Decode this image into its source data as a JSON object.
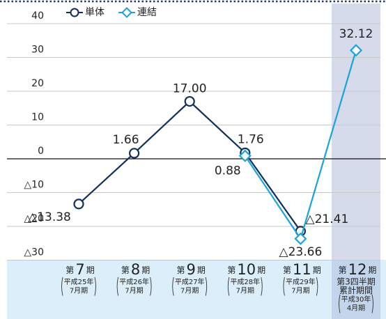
{
  "chart_data": {
    "type": "line",
    "categories": [
      "第7期",
      "第8期",
      "第9期",
      "第10期",
      "第11期",
      "第12期"
    ],
    "category_notes": [
      [
        "平成25年",
        "7月期"
      ],
      [
        "平成26年",
        "7月期"
      ],
      [
        "平成27年",
        "7月期"
      ],
      [
        "平成28年",
        "7月期"
      ],
      [
        "平成29年",
        "7月期"
      ],
      [
        "第3四半期",
        "累計期間",
        "平成30年",
        "4月期"
      ]
    ],
    "series": [
      {
        "name": "単体",
        "color": "#0f2f5c",
        "marker": "circle",
        "values": [
          -13.38,
          1.66,
          17.0,
          1.76,
          -21.41,
          null
        ],
        "value_labels": [
          "△13.38",
          "1.66",
          "17.00",
          "1.76",
          "△21.41",
          null
        ]
      },
      {
        "name": "連結",
        "color": "#1aa3d9",
        "marker": "diamond",
        "values": [
          null,
          null,
          null,
          0.88,
          -23.66,
          32.12
        ],
        "value_labels": [
          null,
          null,
          null,
          "0.88",
          "△23.66",
          "32.12"
        ]
      }
    ],
    "ylim": [
      -30,
      40
    ],
    "yticks": [
      40,
      30,
      20,
      10,
      0,
      {
        "value": -10,
        "label": "△10"
      },
      {
        "value": -20,
        "label": "△20"
      },
      {
        "value": -30,
        "label": "△30"
      }
    ],
    "grid": true,
    "legend": "top"
  }
}
